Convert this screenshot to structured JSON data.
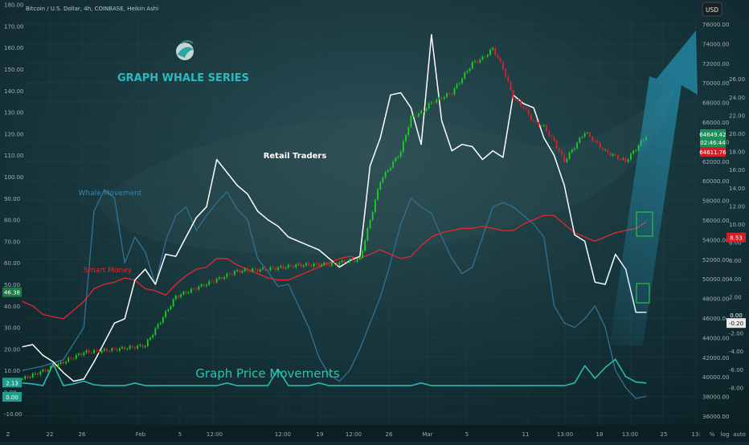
{
  "header": {
    "symbol": "Bitcoin / U.S. Dollar, 4h, COINBASE, Heikin Ashi",
    "currency_button": "USD"
  },
  "branding": {
    "series_title": "GRAPH WHALE SERIES",
    "logo_icon": "whale-logo-icon"
  },
  "colors": {
    "background": "#0f2a30",
    "candle_up": "#19d31e",
    "candle_down": "#e0202a",
    "retail": "#ffffff",
    "smart_money": "#e8262b",
    "whale": "#2f6f8f",
    "price_movements": "#2bb8b0"
  },
  "annotations": {
    "retail": "Retail Traders",
    "whale": "Whale Movement",
    "smart_money": "Smart Money",
    "price_movements": "Graph Price Movements"
  },
  "left_axis": {
    "ticks": [
      "180.00",
      "170.00",
      "160.00",
      "150.00",
      "140.00",
      "130.00",
      "120.00",
      "110.00",
      "100.00",
      "90.00",
      "80.00",
      "70.00",
      "60.00",
      "50.00",
      "40.00",
      "30.00",
      "20.00",
      "10.00",
      "0.00",
      "-10.00"
    ],
    "badges": [
      {
        "text": "46.38",
        "value": 46.38,
        "color": "#1f7a4a"
      },
      {
        "text": "2.13",
        "value": 2.13,
        "color": "#1f9e8f"
      },
      {
        "text": "0.00",
        "value": 0.0,
        "color": "#1f9e8f"
      }
    ]
  },
  "price_axis": {
    "ticks": [
      "76000.00",
      "74000.00",
      "72000.00",
      "70000.00",
      "68000.00",
      "66000.00",
      "64000.00",
      "62000.00",
      "60000.00",
      "58000.00",
      "56000.00",
      "54000.00",
      "52000.00",
      "50000.00",
      "48000.00",
      "46000.00",
      "44000.00",
      "42000.00",
      "40000.00",
      "38000.00",
      "36000.00"
    ],
    "badges": [
      {
        "text": "64649.42",
        "value": 64649.42,
        "color": "#1f8f5a"
      },
      {
        "text": "02:46:44",
        "value": 64180,
        "color": "#1f8f5a"
      },
      {
        "text": "64611.76",
        "value": 63500,
        "color": "#d0202a"
      }
    ]
  },
  "osc_axis": {
    "ticks": [
      "26.00",
      "24.00",
      "22.00",
      "20.00",
      "18.00",
      "16.00",
      "14.00",
      "12.00",
      "10.00",
      "8.00",
      "6.00",
      "4.00",
      "2.00",
      "0.00",
      "-2.00",
      "-4.00",
      "-6.00",
      "-8.00"
    ],
    "badges": [
      {
        "text": "8.53",
        "value": 8.53,
        "color": "#d0202a"
      },
      {
        "text": "0.00",
        "value": 0.0,
        "color": "#0f2a30"
      },
      {
        "text": "-0.20",
        "value": -0.9,
        "color": "#e8e8e8"
      }
    ]
  },
  "time_axis": {
    "labels": [
      "22",
      "26",
      "Feb",
      "5",
      "12:00",
      "12:00",
      "19",
      "12:00",
      "26",
      "Mar",
      "5",
      "11",
      "13:00",
      "18",
      "13:00",
      "25",
      "13:"
    ],
    "corner_icons": [
      "z-zoom-icon",
      "percent-toggle-icon",
      "log-toggle-icon",
      "auto-scale-icon"
    ],
    "toggle_labels": [
      "%",
      "log",
      "auto"
    ]
  },
  "chart_data": {
    "type": "line",
    "x_start": "2024-01-18",
    "x_end": "2024-03-25",
    "price": {
      "name": "",
      "style": "heikin-ashi",
      "x_days": [
        0,
        3,
        6,
        9,
        12,
        15,
        18,
        21,
        24,
        27,
        30,
        33,
        35,
        37,
        38,
        39,
        40,
        41,
        42,
        43,
        44,
        45,
        46,
        47,
        48,
        49,
        50,
        51,
        52,
        53,
        55,
        57,
        59,
        61
      ],
      "close": [
        39800,
        41000,
        42500,
        42800,
        43200,
        48200,
        49500,
        50800,
        51000,
        51400,
        51500,
        52000,
        60000,
        63000,
        66500,
        67000,
        68000,
        68500,
        69000,
        70500,
        72000,
        72500,
        73500,
        71500,
        68500,
        67500,
        66000,
        65500,
        64000,
        62000,
        65000,
        63000,
        62000,
        64600
      ],
      "ylim": [
        36000,
        76000
      ]
    },
    "retail": {
      "name": "",
      "x_days": [
        0,
        1,
        2,
        3,
        4,
        5,
        6,
        7,
        8,
        9,
        10,
        11,
        12,
        13,
        14,
        15,
        16,
        17,
        18,
        19,
        20,
        21,
        22,
        23,
        24,
        25,
        26,
        27,
        28,
        29,
        30,
        31,
        32,
        33,
        34,
        35,
        36,
        37,
        38,
        39,
        40,
        41,
        42,
        43,
        44,
        45,
        46,
        47,
        48,
        49,
        50,
        51,
        52,
        53,
        54,
        55,
        56,
        57,
        58,
        59,
        60,
        61
      ],
      "values": [
        21,
        22,
        17,
        14,
        9,
        5,
        6,
        14,
        23,
        32,
        34,
        52,
        57,
        50,
        64,
        63,
        72,
        81,
        86,
        108,
        102,
        96,
        92,
        84,
        80,
        77,
        72,
        70,
        68,
        66,
        62,
        58,
        61,
        63,
        105,
        118,
        138,
        139,
        132,
        115,
        166,
        126,
        112,
        115,
        114,
        108,
        112,
        109,
        138,
        134,
        132,
        118,
        110,
        96,
        73,
        70,
        51,
        50,
        64,
        57,
        37,
        37
      ],
      "ylim": [
        -10,
        180
      ]
    },
    "smart_money": {
      "name": "",
      "x_days": [
        0,
        1,
        2,
        3,
        4,
        5,
        6,
        7,
        8,
        9,
        10,
        11,
        12,
        13,
        14,
        15,
        16,
        17,
        18,
        19,
        20,
        21,
        22,
        23,
        24,
        25,
        26,
        27,
        28,
        29,
        30,
        31,
        32,
        33,
        34,
        35,
        36,
        37,
        38,
        39,
        40,
        41,
        42,
        43,
        44,
        45,
        46,
        47,
        48,
        49,
        50,
        51,
        52,
        53,
        54,
        55,
        56,
        57,
        58,
        59,
        60,
        61
      ],
      "values": [
        42,
        40,
        36,
        35,
        34,
        38,
        42,
        48,
        50,
        51,
        53,
        52,
        48,
        47,
        45,
        50,
        54,
        57,
        58,
        62,
        62,
        59,
        57,
        55,
        53,
        52,
        52,
        54,
        56,
        58,
        60,
        62,
        63,
        62,
        64,
        66,
        64,
        62,
        63,
        68,
        72,
        74,
        75,
        76,
        76,
        77,
        76,
        75,
        75,
        78,
        80,
        82,
        82,
        78,
        74,
        72,
        70,
        72,
        74,
        75,
        76,
        79
      ],
      "ylim": [
        -10,
        180
      ]
    },
    "whale": {
      "name": "",
      "x_days": [
        0,
        2,
        4,
        6,
        7,
        8,
        9,
        10,
        11,
        12,
        13,
        14,
        15,
        16,
        17,
        18,
        19,
        20,
        21,
        22,
        23,
        24,
        25,
        26,
        27,
        28,
        29,
        30,
        31,
        32,
        33,
        34,
        35,
        36,
        37,
        38,
        39,
        40,
        41,
        42,
        43,
        44,
        45,
        46,
        47,
        48,
        49,
        50,
        51,
        52,
        53,
        54,
        55,
        56,
        57,
        58,
        59,
        60,
        61
      ],
      "values": [
        10,
        12,
        15,
        30,
        84,
        94,
        90,
        60,
        72,
        65,
        50,
        70,
        82,
        86,
        75,
        82,
        88,
        93,
        85,
        80,
        62,
        56,
        49,
        50,
        40,
        30,
        16,
        8,
        5,
        10,
        20,
        32,
        44,
        60,
        78,
        90,
        86,
        83,
        72,
        62,
        55,
        58,
        72,
        86,
        88,
        86,
        82,
        78,
        72,
        40,
        32,
        30,
        34,
        40,
        30,
        10,
        2,
        -3,
        -2
      ],
      "ylim": [
        -10,
        180
      ]
    },
    "price_movements": {
      "name": "",
      "x_days": [
        0,
        1,
        2,
        3,
        4,
        5,
        6,
        7,
        8,
        9,
        10,
        11,
        12,
        13,
        14,
        15,
        16,
        17,
        18,
        19,
        20,
        21,
        22,
        23,
        24,
        25,
        26,
        27,
        28,
        29,
        30,
        31,
        32,
        33,
        34,
        35,
        36,
        37,
        38,
        39,
        40,
        41,
        42,
        43,
        44,
        45,
        46,
        47,
        48,
        49,
        50,
        51,
        52,
        53,
        54,
        55,
        56,
        57,
        58,
        59,
        60,
        61
      ],
      "values": [
        -7.5,
        -7.6,
        -7.8,
        -5.4,
        -7.8,
        -7.6,
        -7.3,
        -7.7,
        -7.8,
        -7.8,
        -7.8,
        -7.5,
        -7.8,
        -7.8,
        -7.8,
        -7.8,
        -7.8,
        -7.8,
        -7.8,
        -7.8,
        -7.5,
        -7.8,
        -7.8,
        -7.8,
        -7.8,
        -6.0,
        -7.8,
        -7.8,
        -7.8,
        -7.5,
        -7.8,
        -7.8,
        -7.8,
        -7.8,
        -7.8,
        -7.8,
        -7.8,
        -7.8,
        -7.8,
        -7.5,
        -7.8,
        -7.8,
        -7.8,
        -7.8,
        -7.8,
        -7.8,
        -7.8,
        -7.8,
        -7.8,
        -7.8,
        -7.8,
        -7.8,
        -7.8,
        -7.8,
        -7.5,
        -5.6,
        -7.0,
        -5.8,
        -4.9,
        -6.8,
        -7.4,
        -7.5
      ],
      "ylim": [
        -10,
        26
      ]
    },
    "xlabel": "",
    "ylabel": "",
    "grid": true,
    "legend": "none"
  }
}
